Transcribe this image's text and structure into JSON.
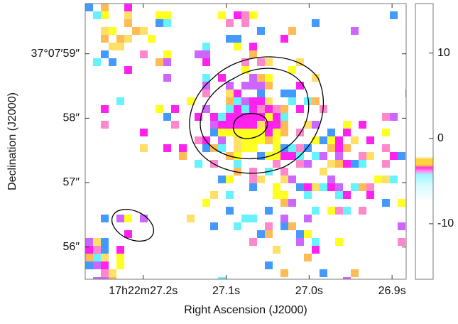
{
  "chart_data": {
    "type": "image",
    "xlabel": "Right Ascension (J2000)",
    "ylabel": "Declination (J2000)",
    "xlim": [
      27.27,
      26.883
    ],
    "xticks": [
      {
        "value": 27.2,
        "label": "17h22m27.2s"
      },
      {
        "value": 27.1,
        "label": "27.1s"
      },
      {
        "value": 27.0,
        "label": "27.0s"
      },
      {
        "value": 26.9,
        "label": "26.9s"
      }
    ],
    "ylim": [
      55.5,
      59.78
    ],
    "yticks": [
      {
        "value": 59,
        "label": "37°07′59″"
      },
      {
        "value": 58,
        "label": "58″"
      },
      {
        "value": 57,
        "label": "57″"
      },
      {
        "value": 56,
        "label": "56″"
      }
    ],
    "colorbar": {
      "lim": [
        -16.5,
        15.8
      ],
      "ticks": [
        10,
        0,
        -10
      ]
    }
  }
}
